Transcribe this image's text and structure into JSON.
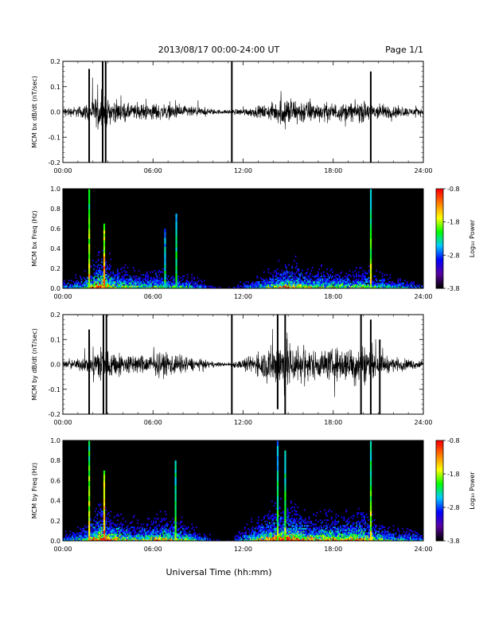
{
  "header": {
    "date_range": "2013/08/17  00:00-24:00 UT",
    "page": "Page 1/1"
  },
  "footer": {
    "xlabel": "Universal Time (hh:mm)"
  },
  "chart_data": [
    {
      "type": "line",
      "ylabel": "MCM bx dB/dt (nT/sec)",
      "xlim": [
        0,
        24
      ],
      "ylim": [
        -0.2,
        0.2
      ],
      "x_ticks": [
        "00:00",
        "06:00",
        "12:00",
        "18:00",
        "24:00"
      ],
      "y_ticks": [
        "-0.2",
        "-0.1",
        "0.0",
        "0.1",
        "0.2"
      ],
      "trace_color": "#000000",
      "envelope": {
        "x": [
          0,
          1,
          1.7,
          2.5,
          3,
          4,
          5,
          6,
          7,
          8,
          9,
          10,
          10.8,
          11.2,
          12,
          13,
          14,
          14.8,
          15.5,
          16,
          17,
          18,
          19,
          20,
          20.8,
          21.5,
          22,
          23,
          24
        ],
        "amplitude": [
          0.025,
          0.03,
          0.05,
          0.1,
          0.07,
          0.05,
          0.04,
          0.05,
          0.04,
          0.035,
          0.025,
          0.015,
          0.01,
          0.015,
          0.02,
          0.03,
          0.05,
          0.09,
          0.07,
          0.07,
          0.05,
          0.05,
          0.05,
          0.06,
          0.05,
          0.04,
          0.035,
          0.025,
          0.02
        ]
      },
      "spikes": [
        {
          "x": 1.75,
          "ymin": -0.2,
          "ymax": 0.17
        },
        {
          "x": 2.65,
          "ymin": -0.2,
          "ymax": 0.2
        },
        {
          "x": 2.85,
          "ymin": -0.2,
          "ymax": 0.2
        },
        {
          "x": 11.25,
          "ymin": -0.2,
          "ymax": 0.2
        },
        {
          "x": 20.5,
          "ymin": -0.2,
          "ymax": 0.16
        }
      ]
    },
    {
      "type": "heatmap",
      "ylabel": "MCM bx Freq (Hz)",
      "xlim": [
        0,
        24
      ],
      "ylim": [
        0,
        1.0
      ],
      "x_ticks": [
        "00:00",
        "06:00",
        "12:00",
        "18:00",
        "24:00"
      ],
      "y_ticks": [
        "0.0",
        "0.2",
        "0.4",
        "0.6",
        "0.8",
        "1.0"
      ],
      "colorbar": {
        "label": "Log₁₀ Power",
        "range": [
          -3.8,
          -0.8
        ],
        "ticks": [
          "-0.8",
          "-1.8",
          "-2.8",
          "-3.8"
        ],
        "colors": [
          "#000000",
          "#5a00a0",
          "#0000ff",
          "#00c8ff",
          "#00ff00",
          "#ffff00",
          "#ff8000",
          "#ff0000"
        ]
      },
      "activity": {
        "x": [
          0,
          1,
          1.7,
          2.5,
          3,
          4,
          5,
          6,
          7,
          8,
          9,
          10,
          10.8,
          11.2,
          12,
          13,
          14,
          14.8,
          15.5,
          16,
          17,
          18,
          19,
          20,
          20.8,
          21.5,
          22,
          23,
          24
        ],
        "level": [
          0.25,
          0.3,
          0.45,
          0.8,
          0.6,
          0.45,
          0.4,
          0.45,
          0.4,
          0.35,
          0.25,
          0.15,
          0.1,
          0.15,
          0.2,
          0.3,
          0.45,
          0.6,
          0.55,
          0.5,
          0.45,
          0.45,
          0.4,
          0.45,
          0.4,
          0.35,
          0.3,
          0.25,
          0.2
        ]
      },
      "streaks": [
        {
          "x": 1.75,
          "fmax": 1.0,
          "level": 0.75
        },
        {
          "x": 2.75,
          "fmax": 0.65,
          "level": 0.9
        },
        {
          "x": 6.8,
          "fmax": 0.6,
          "level": 0.55
        },
        {
          "x": 7.55,
          "fmax": 0.75,
          "level": 0.6
        },
        {
          "x": 20.5,
          "fmax": 1.0,
          "level": 0.7
        }
      ]
    },
    {
      "type": "line",
      "ylabel": "MCM by dB/dt (nT/sec)",
      "xlim": [
        0,
        24
      ],
      "ylim": [
        -0.2,
        0.2
      ],
      "x_ticks": [
        "00:00",
        "06:00",
        "12:00",
        "18:00",
        "24:00"
      ],
      "y_ticks": [
        "-0.2",
        "-0.1",
        "0.0",
        "0.1",
        "0.2"
      ],
      "trace_color": "#000000",
      "envelope": {
        "x": [
          0,
          1,
          1.7,
          2.5,
          3,
          4,
          5,
          6,
          7,
          8,
          9,
          10,
          10.8,
          11.2,
          12,
          13,
          14,
          14.8,
          15.5,
          16,
          17,
          18,
          19,
          20,
          20.8,
          21.5,
          22,
          23,
          24
        ],
        "amplitude": [
          0.02,
          0.03,
          0.05,
          0.12,
          0.08,
          0.06,
          0.05,
          0.06,
          0.07,
          0.05,
          0.03,
          0.015,
          0.01,
          0.015,
          0.03,
          0.06,
          0.12,
          0.15,
          0.12,
          0.1,
          0.08,
          0.09,
          0.1,
          0.12,
          0.06,
          0.05,
          0.04,
          0.03,
          0.02
        ]
      },
      "spikes": [
        {
          "x": 1.75,
          "ymin": -0.2,
          "ymax": 0.14
        },
        {
          "x": 2.7,
          "ymin": -0.2,
          "ymax": 0.2
        },
        {
          "x": 2.9,
          "ymin": -0.2,
          "ymax": 0.2
        },
        {
          "x": 11.25,
          "ymin": -0.2,
          "ymax": 0.2
        },
        {
          "x": 14.3,
          "ymin": -0.18,
          "ymax": 0.2
        },
        {
          "x": 14.8,
          "ymin": -0.2,
          "ymax": 0.2
        },
        {
          "x": 19.85,
          "ymin": -0.2,
          "ymax": 0.2
        },
        {
          "x": 20.5,
          "ymin": -0.2,
          "ymax": 0.18
        },
        {
          "x": 21.1,
          "ymin": -0.2,
          "ymax": 0.1
        }
      ]
    },
    {
      "type": "heatmap",
      "ylabel": "MCM by Freq (Hz)",
      "xlim": [
        0,
        24
      ],
      "ylim": [
        0,
        1.0
      ],
      "x_ticks": [
        "00:00",
        "06:00",
        "12:00",
        "18:00",
        "24:00"
      ],
      "y_ticks": [
        "0.0",
        "0.2",
        "0.4",
        "0.6",
        "0.8",
        "1.0"
      ],
      "colorbar": {
        "label": "Log₁₀ Power",
        "range": [
          -3.8,
          -0.8
        ],
        "ticks": [
          "-0.8",
          "-1.8",
          "-2.8",
          "-3.8"
        ],
        "colors": [
          "#000000",
          "#5a00a0",
          "#0000ff",
          "#00c8ff",
          "#00ff00",
          "#ffff00",
          "#ff8000",
          "#ff0000"
        ]
      },
      "activity": {
        "x": [
          0,
          1,
          1.7,
          2.5,
          3,
          4,
          5,
          6,
          7,
          8,
          9,
          10,
          10.8,
          11.2,
          12,
          13,
          14,
          14.8,
          15.5,
          16,
          17,
          18,
          19,
          20,
          20.8,
          21.5,
          22,
          23,
          24
        ],
        "level": [
          0.25,
          0.3,
          0.45,
          0.85,
          0.65,
          0.5,
          0.45,
          0.5,
          0.55,
          0.45,
          0.3,
          0.15,
          0.1,
          0.15,
          0.3,
          0.5,
          0.7,
          0.8,
          0.7,
          0.6,
          0.55,
          0.6,
          0.6,
          0.65,
          0.45,
          0.4,
          0.35,
          0.3,
          0.25
        ]
      },
      "streaks": [
        {
          "x": 1.75,
          "fmax": 1.0,
          "level": 0.75
        },
        {
          "x": 2.75,
          "fmax": 0.7,
          "level": 0.9
        },
        {
          "x": 7.5,
          "fmax": 0.8,
          "level": 0.65
        },
        {
          "x": 14.3,
          "fmax": 1.0,
          "level": 0.6
        },
        {
          "x": 14.8,
          "fmax": 0.9,
          "level": 0.65
        },
        {
          "x": 20.5,
          "fmax": 1.0,
          "level": 0.7
        }
      ]
    }
  ]
}
